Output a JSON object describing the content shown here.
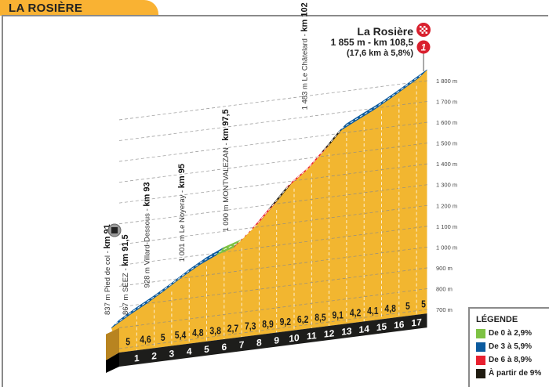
{
  "header": {
    "title": "LA ROSIÈRE"
  },
  "summit": {
    "name": "La Rosière",
    "detail": "1 855 m - km 108,5",
    "climb": "(17,6 km à 5,8%)",
    "category_badge": "1",
    "finish_icon": "checkered-flag-icon"
  },
  "chart_data": {
    "type": "area",
    "title": "",
    "xlabel": "",
    "ylabel": "",
    "start_elevation": 837,
    "total_km": 17.6,
    "km_ticks": [
      "1",
      "2",
      "3",
      "4",
      "5",
      "6",
      "7",
      "8",
      "9",
      "10",
      "11",
      "12",
      "13",
      "14",
      "15",
      "16",
      "17"
    ],
    "gradients": [
      "5",
      "4,6",
      "5",
      "5,4",
      "4,8",
      "3,8",
      "2,7",
      "7,3",
      "8,9",
      "9,2",
      "6,2",
      "8,5",
      "9,1",
      "4,2",
      "4,1",
      "4,8",
      "5",
      "5"
    ],
    "gradient_values": [
      5,
      4.6,
      5,
      5.4,
      4.8,
      3.8,
      2.7,
      7.3,
      8.9,
      9.2,
      6.2,
      8.5,
      9.1,
      4.2,
      4.1,
      4.8,
      5,
      5
    ],
    "y_ticks": [
      "700 m",
      "800 m",
      "900 m",
      "1 000 m",
      "1 100 m",
      "1 200 m",
      "1 300 m",
      "1 400 m",
      "1 500 m",
      "1 600 m",
      "1 700 m",
      "1 800 m"
    ],
    "y_tick_values": [
      700,
      800,
      900,
      1000,
      1100,
      1200,
      1300,
      1400,
      1500,
      1600,
      1700,
      1800
    ],
    "ylim": [
      700,
      1855
    ],
    "waypoints": [
      {
        "km": 0,
        "label": "837 m Pied de col - ",
        "bold": "km 91",
        "icon": "feed-zone-icon"
      },
      {
        "km": 0.5,
        "label": "867 m SÉEZ - ",
        "bold": "km 91,5"
      },
      {
        "km": 2,
        "label": "928 m Villard-Dessous - ",
        "bold": "km 93"
      },
      {
        "km": 4,
        "label": "1 001 m Le Noyeray - ",
        "bold": "km 95"
      },
      {
        "km": 6.5,
        "label": "1 090 m MONTVALEZAN - ",
        "bold": "km 97,5"
      },
      {
        "km": 11,
        "label": "1 483 m Le Châtelard - ",
        "bold": "km 102"
      }
    ],
    "colors": {
      "green": "#7dc243",
      "blue": "#0b5a9e",
      "red": "#e8202f",
      "black": "#1f1b10",
      "terrain": "#f2b630"
    }
  },
  "legend": {
    "title": "LÉGENDE",
    "items": [
      {
        "label": "De 0 à 2,9%",
        "color": "#7dc243"
      },
      {
        "label": "De 3 à 5,9%",
        "color": "#0b5a9e"
      },
      {
        "label": "De 6 à 8,9%",
        "color": "#e8202f"
      },
      {
        "label": "À partir de 9%",
        "color": "#1f1b10"
      }
    ]
  }
}
